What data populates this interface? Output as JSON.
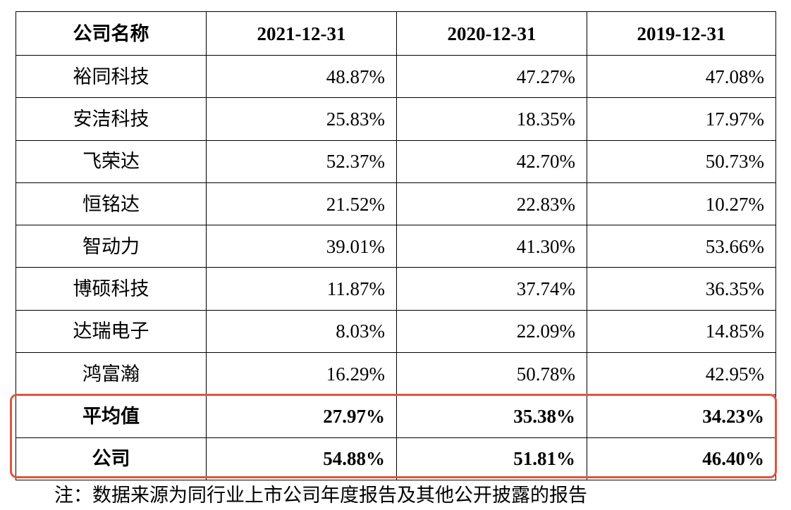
{
  "table": {
    "headers": [
      "公司名称",
      "2021-12-31",
      "2020-12-31",
      "2019-12-31"
    ],
    "rows": [
      {
        "name": "裕同科技",
        "values": [
          "48.87%",
          "47.27%",
          "47.08%"
        ]
      },
      {
        "name": "安洁科技",
        "values": [
          "25.83%",
          "18.35%",
          "17.97%"
        ]
      },
      {
        "name": "飞荣达",
        "values": [
          "52.37%",
          "42.70%",
          "50.73%"
        ]
      },
      {
        "name": "恒铭达",
        "values": [
          "21.52%",
          "22.83%",
          "10.27%"
        ]
      },
      {
        "name": "智动力",
        "values": [
          "39.01%",
          "41.30%",
          "53.66%"
        ]
      },
      {
        "name": "博硕科技",
        "values": [
          "11.87%",
          "37.74%",
          "36.35%"
        ]
      },
      {
        "name": "达瑞电子",
        "values": [
          "8.03%",
          "22.09%",
          "14.85%"
        ]
      },
      {
        "name": "鸿富瀚",
        "values": [
          "16.29%",
          "50.78%",
          "42.95%"
        ]
      }
    ],
    "summary_rows": [
      {
        "name": "平均值",
        "values": [
          "27.97%",
          "35.38%",
          "34.23%"
        ]
      },
      {
        "name": "公司",
        "values": [
          "54.88%",
          "51.81%",
          "46.40%"
        ]
      }
    ]
  },
  "note": "注：数据来源为同行业上市公司年度报告及其他公开披露的报告",
  "colors": {
    "highlight_box": "#e2553d",
    "table_border": "#000000"
  }
}
